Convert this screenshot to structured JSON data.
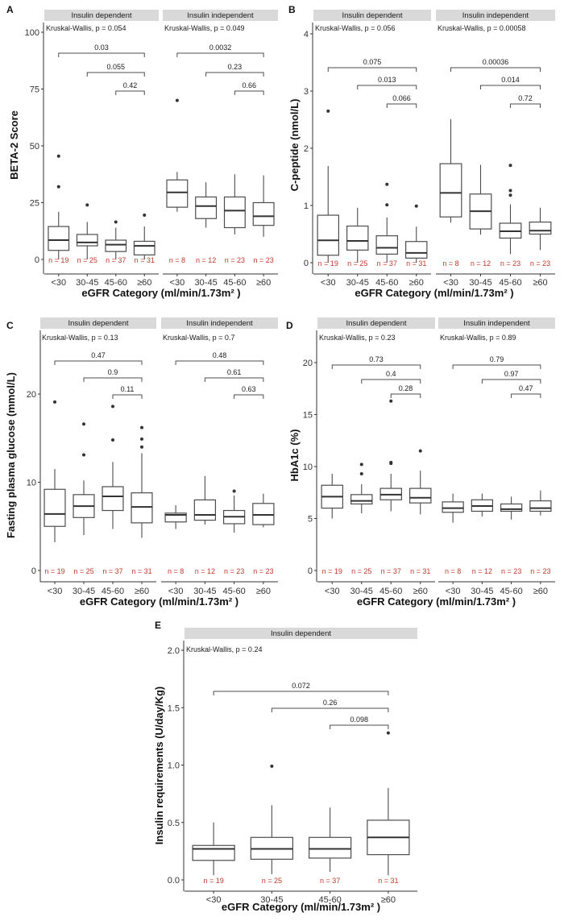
{
  "chart_data": [
    {
      "panel": "A",
      "type": "box",
      "ylabel": "BETA-2 Score",
      "xlabel": "eGFR Category (ml/min/1.73m² )",
      "ylim": [
        0,
        100
      ],
      "yticks": [
        0,
        25,
        50,
        75,
        100
      ],
      "categories": [
        "<30",
        "30-45",
        "45-60",
        "≥60"
      ],
      "facets": [
        {
          "name": "Insulin dependent",
          "kruskal_wallis": "Kruskal-Wallis, p = 0.054",
          "comparisons": [
            {
              "from": "<30",
              "to": "≥60",
              "p": "0.03"
            },
            {
              "from": "30-45",
              "to": "≥60",
              "p": "0.055"
            },
            {
              "from": "45-60",
              "to": "≥60",
              "p": "0.42"
            }
          ],
          "boxes": [
            {
              "category": "<30",
              "min": 0,
              "q1": 4,
              "median": 8.5,
              "q3": 14.5,
              "max": 21,
              "outliers": [
                32,
                45.5
              ],
              "n": "n = 19"
            },
            {
              "category": "30-45",
              "min": 0,
              "q1": 6,
              "median": 7.5,
              "q3": 11,
              "max": 16.5,
              "outliers": [
                24
              ],
              "n": "n = 25"
            },
            {
              "category": "45-60",
              "min": 0,
              "q1": 3.5,
              "median": 6.5,
              "q3": 8.5,
              "max": 14,
              "outliers": [
                16.5
              ],
              "n": "n = 37"
            },
            {
              "category": "≥60",
              "min": 0,
              "q1": 2,
              "median": 6,
              "q3": 8,
              "max": 14.5,
              "outliers": [
                19.5
              ],
              "n": "n = 31"
            }
          ]
        },
        {
          "name": "Insulin independent",
          "kruskal_wallis": "Kruskal-Wallis, p = 0.049",
          "comparisons": [
            {
              "from": "<30",
              "to": "≥60",
              "p": "0.0032"
            },
            {
              "from": "30-45",
              "to": "≥60",
              "p": "0.23"
            },
            {
              "from": "45-60",
              "to": "≥60",
              "p": "0.66"
            }
          ],
          "boxes": [
            {
              "category": "<30",
              "min": 21,
              "q1": 23,
              "median": 29.5,
              "q3": 35,
              "max": 38.5,
              "outliers": [
                70
              ],
              "n": "n = 8"
            },
            {
              "category": "30-45",
              "min": 14,
              "q1": 18,
              "median": 23.5,
              "q3": 27.5,
              "max": 34,
              "outliers": [],
              "n": "n = 12"
            },
            {
              "category": "45-60",
              "min": 11,
              "q1": 14,
              "median": 21.5,
              "q3": 27.5,
              "max": 37.5,
              "outliers": [],
              "n": "n = 23"
            },
            {
              "category": "≥60",
              "min": 10,
              "q1": 15,
              "median": 19,
              "q3": 25,
              "max": 37,
              "outliers": [],
              "n": "n = 23"
            }
          ]
        }
      ]
    },
    {
      "panel": "B",
      "type": "box",
      "ylabel": "C-peptide (nmol/L)",
      "xlabel": "eGFR Category (ml/min/1.73m² )",
      "ylim": [
        0,
        4
      ],
      "yticks": [
        0,
        1,
        2,
        3,
        4
      ],
      "categories": [
        "<30",
        "30-45",
        "45-60",
        "≥60"
      ],
      "facets": [
        {
          "name": "Insulin dependent",
          "kruskal_wallis": "Kruskal-Wallis, p = 0.056",
          "comparisons": [
            {
              "from": "<30",
              "to": "≥60",
              "p": "0.075"
            },
            {
              "from": "30-45",
              "to": "≥60",
              "p": "0.013"
            },
            {
              "from": "45-60",
              "to": "≥60",
              "p": "0.066"
            }
          ],
          "boxes": [
            {
              "category": "<30",
              "min": 0,
              "q1": 0.13,
              "median": 0.39,
              "q3": 0.83,
              "max": 1.69,
              "outliers": [
                2.65
              ],
              "n": "n = 19"
            },
            {
              "category": "30-45",
              "min": 0,
              "q1": 0.22,
              "median": 0.38,
              "q3": 0.64,
              "max": 0.96,
              "outliers": [],
              "n": "n = 25"
            },
            {
              "category": "45-60",
              "min": 0,
              "q1": 0.15,
              "median": 0.26,
              "q3": 0.47,
              "max": 0.79,
              "outliers": [
                1.01,
                1.37
              ],
              "n": "n = 37"
            },
            {
              "category": "≥60",
              "min": 0,
              "q1": 0.08,
              "median": 0.17,
              "q3": 0.37,
              "max": 0.63,
              "outliers": [
                0.99
              ],
              "n": "n = 31"
            }
          ]
        },
        {
          "name": "Insulin independent",
          "kruskal_wallis": "Kruskal-Wallis, p = 0.00058",
          "comparisons": [
            {
              "from": "<30",
              "to": "≥60",
              "p": "0.00036"
            },
            {
              "from": "30-45",
              "to": "≥60",
              "p": "0.014"
            },
            {
              "from": "45-60",
              "to": "≥60",
              "p": "0.72"
            }
          ],
          "boxes": [
            {
              "category": "<30",
              "min": 0.7,
              "q1": 0.8,
              "median": 1.22,
              "q3": 1.73,
              "max": 2.51,
              "outliers": [],
              "n": "n = 8"
            },
            {
              "category": "30-45",
              "min": 0.49,
              "q1": 0.59,
              "median": 0.9,
              "q3": 1.2,
              "max": 1.71,
              "outliers": [],
              "n": "n = 12"
            },
            {
              "category": "45-60",
              "min": 0.15,
              "q1": 0.43,
              "median": 0.55,
              "q3": 0.69,
              "max": 1.02,
              "outliers": [
                1.18,
                1.26,
                1.7
              ],
              "n": "n = 23"
            },
            {
              "category": "≥60",
              "min": 0.22,
              "q1": 0.5,
              "median": 0.56,
              "q3": 0.71,
              "max": 0.96,
              "outliers": [],
              "n": "n = 23"
            }
          ]
        }
      ]
    },
    {
      "panel": "C",
      "type": "box",
      "ylabel": "Fasting plasma glucose (mmol/L)",
      "xlabel": "eGFR Category (ml/min/1.73m² )",
      "ylim": [
        0,
        26
      ],
      "yticks": [
        0,
        10,
        20
      ],
      "categories": [
        "<30",
        "30-45",
        "45-60",
        "≥60"
      ],
      "facets": [
        {
          "name": "Insulin dependent",
          "kruskal_wallis": "Kruskal-Wallis, p = 0.13",
          "comparisons": [
            {
              "from": "<30",
              "to": "≥60",
              "p": "0.47"
            },
            {
              "from": "30-45",
              "to": "≥60",
              "p": "0.9"
            },
            {
              "from": "45-60",
              "to": "≥60",
              "p": "0.11"
            }
          ],
          "boxes": [
            {
              "category": "<30",
              "min": 3.2,
              "q1": 5,
              "median": 6.4,
              "q3": 9.2,
              "max": 11.5,
              "outliers": [
                19.1
              ],
              "n": "n = 19"
            },
            {
              "category": "30-45",
              "min": 4,
              "q1": 6,
              "median": 7.3,
              "q3": 8.6,
              "max": 10.2,
              "outliers": [
                13.1,
                16.6
              ],
              "n": "n = 25"
            },
            {
              "category": "45-60",
              "min": 4.7,
              "q1": 6.8,
              "median": 8.4,
              "q3": 9.5,
              "max": 12.3,
              "outliers": [
                14.8,
                18.6
              ],
              "n": "n = 37"
            },
            {
              "category": "≥60",
              "min": 3.7,
              "q1": 5.4,
              "median": 7.2,
              "q3": 8.8,
              "max": 13.3,
              "outliers": [
                14,
                14.9,
                16.2
              ],
              "n": "n = 31"
            }
          ]
        },
        {
          "name": "Insulin independent",
          "kruskal_wallis": "Kruskal-Wallis, p = 0.7",
          "comparisons": [
            {
              "from": "<30",
              "to": "≥60",
              "p": "0.48"
            },
            {
              "from": "30-45",
              "to": "≥60",
              "p": "0.61"
            },
            {
              "from": "45-60",
              "to": "≥60",
              "p": "0.63"
            }
          ],
          "boxes": [
            {
              "category": "<30",
              "min": 4.7,
              "q1": 5.5,
              "median": 6.3,
              "q3": 6.5,
              "max": 7.4,
              "outliers": [],
              "n": "n = 8"
            },
            {
              "category": "30-45",
              "min": 5.2,
              "q1": 5.7,
              "median": 6.3,
              "q3": 8,
              "max": 10.7,
              "outliers": [],
              "n": "n = 12"
            },
            {
              "category": "45-60",
              "min": 4.3,
              "q1": 5.3,
              "median": 6.1,
              "q3": 6.8,
              "max": 8.5,
              "outliers": [
                9
              ],
              "n": "n = 23"
            },
            {
              "category": "≥60",
              "min": 4.9,
              "q1": 5.2,
              "median": 6.3,
              "q3": 7.6,
              "max": 8.7,
              "outliers": [],
              "n": "n = 23"
            }
          ]
        }
      ]
    },
    {
      "panel": "D",
      "type": "box",
      "ylabel": "HbA1c (%)",
      "xlabel": "eGFR Category (ml/min/1.73m² )",
      "ylim": [
        0,
        24
      ],
      "yticks": [
        0,
        5,
        10,
        15,
        20
      ],
      "categories": [
        "<30",
        "30-45",
        "45-60",
        "≥60"
      ],
      "facets": [
        {
          "name": "Insulin dependent",
          "kruskal_wallis": "Kruskal-Wallis, p = 0.23",
          "comparisons": [
            {
              "from": "<30",
              "to": "≥60",
              "p": "0.73"
            },
            {
              "from": "30-45",
              "to": "≥60",
              "p": "0.4"
            },
            {
              "from": "45-60",
              "to": "≥60",
              "p": "0.28"
            }
          ],
          "boxes": [
            {
              "category": "<30",
              "min": 5,
              "q1": 6,
              "median": 7.1,
              "q3": 8.2,
              "max": 9.3,
              "outliers": [],
              "n": "n = 19"
            },
            {
              "category": "30-45",
              "min": 5.5,
              "q1": 6.4,
              "median": 6.7,
              "q3": 7.3,
              "max": 8.3,
              "outliers": [
                9.3,
                10.2
              ],
              "n": "n = 25"
            },
            {
              "category": "45-60",
              "min": 5.7,
              "q1": 6.8,
              "median": 7.3,
              "q3": 7.9,
              "max": 9.3,
              "outliers": [
                10.3,
                10.4,
                16.3
              ],
              "n": "n = 37"
            },
            {
              "category": "≥60",
              "min": 5.4,
              "q1": 6.5,
              "median": 7,
              "q3": 7.9,
              "max": 9.6,
              "outliers": [
                11.5
              ],
              "n": "n = 31"
            }
          ]
        },
        {
          "name": "Insulin independent",
          "kruskal_wallis": "Kruskal-Wallis, p = 0.89",
          "comparisons": [
            {
              "from": "<30",
              "to": "≥60",
              "p": "0.79"
            },
            {
              "from": "30-45",
              "to": "≥60",
              "p": "0.97"
            },
            {
              "from": "45-60",
              "to": "≥60",
              "p": "0.47"
            }
          ],
          "boxes": [
            {
              "category": "<30",
              "min": 4.6,
              "q1": 5.6,
              "median": 6,
              "q3": 6.6,
              "max": 7.4,
              "outliers": [],
              "n": "n = 8"
            },
            {
              "category": "30-45",
              "min": 5.2,
              "q1": 5.7,
              "median": 6.2,
              "q3": 6.8,
              "max": 7.4,
              "outliers": [],
              "n": "n = 12"
            },
            {
              "category": "45-60",
              "min": 4.9,
              "q1": 5.7,
              "median": 5.9,
              "q3": 6.4,
              "max": 7.1,
              "outliers": [],
              "n": "n = 23"
            },
            {
              "category": "≥60",
              "min": 5.3,
              "q1": 5.7,
              "median": 6,
              "q3": 6.7,
              "max": 7.7,
              "outliers": [],
              "n": "n = 23"
            }
          ]
        }
      ]
    },
    {
      "panel": "E",
      "type": "box",
      "ylabel": "Insulin requirements (U/day/Kg)",
      "xlabel": "eGFR Category (ml/min/1.73m² )",
      "ylim": [
        0,
        2.1
      ],
      "yticks": [
        0.0,
        0.5,
        1.0,
        1.5,
        2.0
      ],
      "ytick_labels": [
        "0.0",
        "0.5",
        "1.0",
        "1.5",
        "2.0"
      ],
      "categories": [
        "<30",
        "30-45",
        "45-60",
        "≥60"
      ],
      "facets": [
        {
          "name": "Insulin dependent",
          "kruskal_wallis": "Kruskal-Wallis, p = 0.24",
          "comparisons": [
            {
              "from": "<30",
              "to": "≥60",
              "p": "0.072"
            },
            {
              "from": "30-45",
              "to": "≥60",
              "p": "0.26"
            },
            {
              "from": "45-60",
              "to": "≥60",
              "p": "0.098"
            }
          ],
          "boxes": [
            {
              "category": "<30",
              "min": 0.04,
              "q1": 0.17,
              "median": 0.27,
              "q3": 0.3,
              "max": 0.5,
              "outliers": [],
              "n": "n = 19"
            },
            {
              "category": "30-45",
              "min": 0.05,
              "q1": 0.18,
              "median": 0.27,
              "q3": 0.37,
              "max": 0.65,
              "outliers": [
                0.99
              ],
              "n": "n = 25"
            },
            {
              "category": "45-60",
              "min": 0.07,
              "q1": 0.19,
              "median": 0.27,
              "q3": 0.37,
              "max": 0.63,
              "outliers": [],
              "n": "n = 37"
            },
            {
              "category": "≥60",
              "min": 0.04,
              "q1": 0.22,
              "median": 0.37,
              "q3": 0.52,
              "max": 0.8,
              "outliers": [
                1.28
              ],
              "n": "n = 31"
            }
          ]
        }
      ]
    }
  ]
}
